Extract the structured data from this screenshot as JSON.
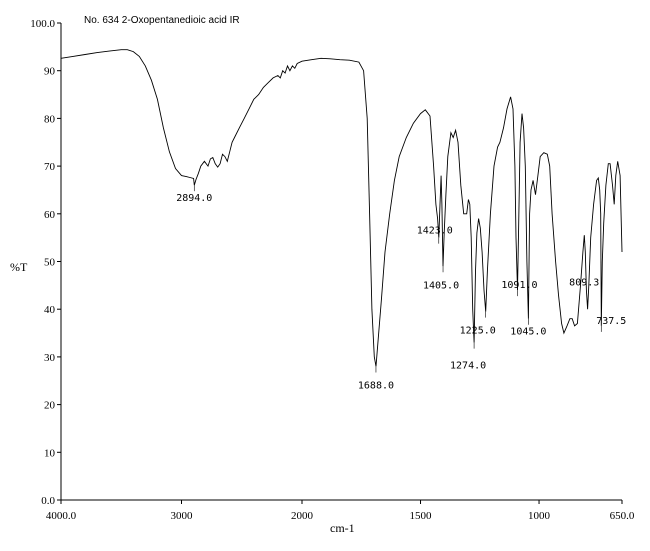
{
  "chart_data": {
    "type": "line",
    "title": "No. 634 2-Oxopentanedioic acid IR",
    "xlabel": "cm-1",
    "ylabel": "%T",
    "xlim": [
      4000,
      650
    ],
    "ylim": [
      0,
      100
    ],
    "x_tick_values": [
      4000,
      3000,
      2000,
      1500,
      1000,
      650
    ],
    "x_tick_labels": [
      "4000.0",
      "3000",
      "2000",
      "1500",
      "1000",
      "650.0"
    ],
    "y_tick_values": [
      0,
      10,
      20,
      30,
      40,
      50,
      60,
      70,
      80,
      90,
      100
    ],
    "y_tick_labels": [
      "0.0",
      "10",
      "20",
      "30",
      "40",
      "50",
      "60",
      "70",
      "80",
      "90",
      "100.0"
    ],
    "grid": false,
    "series": [
      {
        "name": "2-Oxopentanedioic acid",
        "points": [
          [
            4000,
            92.6
          ],
          [
            3900,
            93
          ],
          [
            3800,
            93.4
          ],
          [
            3700,
            93.8
          ],
          [
            3600,
            94.1
          ],
          [
            3500,
            94.4
          ],
          [
            3450,
            94.4
          ],
          [
            3400,
            94.0
          ],
          [
            3350,
            93.0
          ],
          [
            3300,
            91.0
          ],
          [
            3250,
            88.0
          ],
          [
            3200,
            84.0
          ],
          [
            3150,
            78.0
          ],
          [
            3100,
            73.0
          ],
          [
            3050,
            69.5
          ],
          [
            3000,
            68.0
          ],
          [
            2960,
            67.8
          ],
          [
            2930,
            67.6
          ],
          [
            2900,
            67.4
          ],
          [
            2894,
            66.0
          ],
          [
            2880,
            67.2
          ],
          [
            2860,
            68.5
          ],
          [
            2840,
            70.0
          ],
          [
            2810,
            71.0
          ],
          [
            2780,
            70.0
          ],
          [
            2760,
            71.5
          ],
          [
            2740,
            71.8
          ],
          [
            2720,
            70.5
          ],
          [
            2700,
            69.8
          ],
          [
            2680,
            70.5
          ],
          [
            2660,
            72.5
          ],
          [
            2640,
            72.0
          ],
          [
            2620,
            71.0
          ],
          [
            2600,
            73.0
          ],
          [
            2580,
            75.0
          ],
          [
            2560,
            76.0
          ],
          [
            2520,
            78.0
          ],
          [
            2480,
            80.0
          ],
          [
            2440,
            82.0
          ],
          [
            2400,
            84.0
          ],
          [
            2360,
            85.0
          ],
          [
            2320,
            86.5
          ],
          [
            2280,
            87.5
          ],
          [
            2240,
            88.5
          ],
          [
            2200,
            89.0
          ],
          [
            2180,
            88.5
          ],
          [
            2160,
            90.0
          ],
          [
            2140,
            89.5
          ],
          [
            2120,
            91.0
          ],
          [
            2100,
            90.0
          ],
          [
            2080,
            91.0
          ],
          [
            2060,
            90.5
          ],
          [
            2040,
            91.5
          ],
          [
            2000,
            92.0
          ],
          [
            1960,
            92.3
          ],
          [
            1920,
            92.6
          ],
          [
            1880,
            92.5
          ],
          [
            1840,
            92.3
          ],
          [
            1800,
            92.2
          ],
          [
            1760,
            91.8
          ],
          [
            1740,
            90.0
          ],
          [
            1725,
            80.0
          ],
          [
            1715,
            60.0
          ],
          [
            1705,
            40.0
          ],
          [
            1695,
            30.0
          ],
          [
            1688,
            28.0
          ],
          [
            1678,
            34.0
          ],
          [
            1665,
            42.0
          ],
          [
            1650,
            52.0
          ],
          [
            1630,
            60.0
          ],
          [
            1610,
            67.0
          ],
          [
            1590,
            72.0
          ],
          [
            1560,
            76.0
          ],
          [
            1530,
            79.0
          ],
          [
            1500,
            81.0
          ],
          [
            1480,
            81.8
          ],
          [
            1460,
            80.5
          ],
          [
            1445,
            70.0
          ],
          [
            1435,
            62.0
          ],
          [
            1428,
            59.0
          ],
          [
            1423,
            55.0
          ],
          [
            1418,
            62.0
          ],
          [
            1413,
            68.0
          ],
          [
            1410,
            62.0
          ],
          [
            1405,
            49.0
          ],
          [
            1400,
            56.0
          ],
          [
            1393,
            64.0
          ],
          [
            1385,
            72.0
          ],
          [
            1372,
            77.0
          ],
          [
            1362,
            76.0
          ],
          [
            1352,
            77.5
          ],
          [
            1342,
            75.0
          ],
          [
            1330,
            66.0
          ],
          [
            1318,
            60.0
          ],
          [
            1305,
            60.0
          ],
          [
            1298,
            63.0
          ],
          [
            1292,
            62.0
          ],
          [
            1286,
            55.0
          ],
          [
            1280,
            40.0
          ],
          [
            1274,
            33.0
          ],
          [
            1268,
            48.0
          ],
          [
            1262,
            56.0
          ],
          [
            1255,
            59.0
          ],
          [
            1248,
            57.0
          ],
          [
            1240,
            52.0
          ],
          [
            1232,
            44.0
          ],
          [
            1225,
            39.5
          ],
          [
            1218,
            48.0
          ],
          [
            1205,
            60.0
          ],
          [
            1190,
            70.0
          ],
          [
            1175,
            74.0
          ],
          [
            1165,
            75.0
          ],
          [
            1150,
            78.0
          ],
          [
            1135,
            82.0
          ],
          [
            1120,
            84.5
          ],
          [
            1110,
            82.0
          ],
          [
            1102,
            70.0
          ],
          [
            1097,
            55.0
          ],
          [
            1091,
            44.0
          ],
          [
            1086,
            58.0
          ],
          [
            1080,
            75.0
          ],
          [
            1072,
            81.0
          ],
          [
            1065,
            78.0
          ],
          [
            1058,
            70.0
          ],
          [
            1051,
            50.0
          ],
          [
            1045,
            38.0
          ],
          [
            1040,
            60.0
          ],
          [
            1034,
            65.0
          ],
          [
            1025,
            67.0
          ],
          [
            1015,
            64.0
          ],
          [
            1005,
            68.0
          ],
          [
            995,
            72.0
          ],
          [
            980,
            72.8
          ],
          [
            965,
            72.5
          ],
          [
            955,
            70.0
          ],
          [
            945,
            60.0
          ],
          [
            930,
            50.0
          ],
          [
            918,
            43.0
          ],
          [
            905,
            37.0
          ],
          [
            895,
            35.0
          ],
          [
            882,
            36.5
          ],
          [
            870,
            38.0
          ],
          [
            860,
            38.0
          ],
          [
            850,
            36.5
          ],
          [
            838,
            37.0
          ],
          [
            825,
            45.0
          ],
          [
            815,
            52.0
          ],
          [
            809,
            55.5
          ],
          [
            805,
            52.0
          ],
          [
            800,
            44.0
          ],
          [
            795,
            40.0
          ],
          [
            790,
            45.0
          ],
          [
            782,
            55.0
          ],
          [
            770,
            62.0
          ],
          [
            757,
            67.0
          ],
          [
            750,
            67.5
          ],
          [
            744,
            65.0
          ],
          [
            740,
            60.0
          ],
          [
            737.5,
            36.5
          ],
          [
            733,
            50.0
          ],
          [
            727,
            58.0
          ],
          [
            718,
            66.0
          ],
          [
            708,
            70.5
          ],
          [
            700,
            70.5
          ],
          [
            690,
            66.0
          ],
          [
            683,
            62.0
          ],
          [
            676,
            68.0
          ],
          [
            668,
            71.0
          ],
          [
            658,
            68.0
          ],
          [
            650,
            52.0
          ]
        ]
      }
    ],
    "peak_labels": [
      {
        "x": 2894,
        "y": 66.0,
        "label": "2894.0"
      },
      {
        "x": 1688,
        "y": 28.0,
        "label": "1688.0"
      },
      {
        "x": 1423,
        "y": 55.0,
        "label": "1423.0"
      },
      {
        "x": 1405,
        "y": 49.0,
        "label": "1405.0"
      },
      {
        "x": 1274,
        "y": 33.0,
        "label": "1274.0"
      },
      {
        "x": 1225,
        "y": 39.5,
        "label": "1225.0"
      },
      {
        "x": 1091,
        "y": 44.0,
        "label": "1091.0"
      },
      {
        "x": 1045,
        "y": 38.0,
        "label": "1045.0"
      },
      {
        "x": 809.3,
        "y": 55.5,
        "label": "809.3"
      },
      {
        "x": 737.5,
        "y": 36.5,
        "label": "737.5"
      }
    ]
  }
}
